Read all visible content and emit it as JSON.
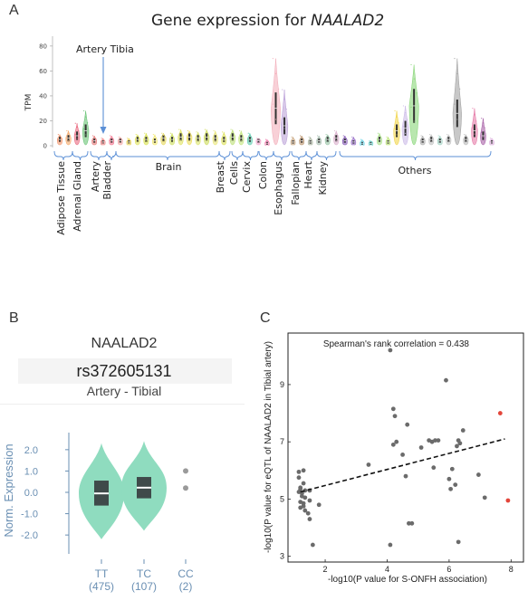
{
  "panels": {
    "a_letter": "A",
    "b_letter": "B",
    "c_letter": "C"
  },
  "panel_a": {
    "title_prefix": "Gene expression for ",
    "title_gene": "NAALAD2",
    "annotation": "Artery Tibia",
    "colors": {
      "arrow": "#5b8fd6",
      "bracket": "#5b8fd6"
    },
    "groups": [
      "Adipose Tissue",
      "Adrenal Gland",
      "Artery",
      "Bladder",
      "Brain",
      "Breast",
      "Cells",
      "Cervix",
      "Colon",
      "Esophagus",
      "Fallopian",
      "Heart",
      "Kidney",
      "Others"
    ]
  },
  "panel_b": {
    "gene": "NAALAD2",
    "snp": "rs372605131",
    "tissue": "Artery - Tibial",
    "colors": {
      "violin": "#8fdcbf",
      "box": "#3f4a4a",
      "median": "#ffffff",
      "axis": "#6a8fb3",
      "dot": "#9a9a9a"
    }
  },
  "panel_c": {
    "corr_label": "Spearman's rank correlation = 0.438",
    "colors": {
      "point": "#6b6b6b",
      "highlight": "#e3453a",
      "trend": "#111111"
    }
  },
  "chart_data": [
    {
      "type": "violin",
      "title": "Gene expression for NAALAD2",
      "ylabel": "TPM",
      "ylim": [
        0,
        85
      ],
      "yticks": [
        0,
        20,
        40,
        60,
        80
      ],
      "grid": false,
      "series": [
        {
          "median": 5,
          "spread": 9,
          "color": "#f08a5d"
        },
        {
          "median": 6,
          "spread": 12,
          "color": "#f5a05a"
        },
        {
          "median": 8,
          "spread": 18,
          "color": "#e85d75"
        },
        {
          "median": 12,
          "spread": 28,
          "color": "#5cbf6a"
        },
        {
          "median": 4,
          "spread": 8,
          "color": "#e46b6b"
        },
        {
          "median": 3,
          "spread": 6,
          "color": "#ee8080"
        },
        {
          "median": 4,
          "spread": 8,
          "color": "#f26a86"
        },
        {
          "median": 4,
          "spread": 7,
          "color": "#f2a0a0"
        },
        {
          "median": 3,
          "spread": 6,
          "color": "#e8d14a"
        },
        {
          "median": 5,
          "spread": 9,
          "color": "#dfe24f"
        },
        {
          "median": 5,
          "spread": 10,
          "color": "#d7e23e"
        },
        {
          "median": 4,
          "spread": 9,
          "color": "#f0e660"
        },
        {
          "median": 6,
          "spread": 10,
          "color": "#e3d64c"
        },
        {
          "median": 5,
          "spread": 10,
          "color": "#c8dc4f"
        },
        {
          "median": 7,
          "spread": 13,
          "color": "#dde051"
        },
        {
          "median": 7,
          "spread": 12,
          "color": "#e9d848"
        },
        {
          "median": 6,
          "spread": 11,
          "color": "#d8e25d"
        },
        {
          "median": 7,
          "spread": 13,
          "color": "#c9d94a"
        },
        {
          "median": 6,
          "spread": 12,
          "color": "#e7e46a"
        },
        {
          "median": 5,
          "spread": 11,
          "color": "#dbe04a"
        },
        {
          "median": 7,
          "spread": 13,
          "color": "#b6dd6a"
        },
        {
          "median": 6,
          "spread": 12,
          "color": "#bfe36f"
        },
        {
          "median": 5,
          "spread": 10,
          "color": "#4fc7a8"
        },
        {
          "median": 4,
          "spread": 6,
          "color": "#f0a0c8"
        },
        {
          "median": 2,
          "spread": 5,
          "color": "#f06fa6"
        },
        {
          "median": 30,
          "spread": 70,
          "color": "#f2a9b7"
        },
        {
          "median": 16,
          "spread": 45,
          "color": "#b79ad6"
        },
        {
          "median": 3,
          "spread": 7,
          "color": "#c6a27a"
        },
        {
          "median": 4,
          "spread": 8,
          "color": "#b48a60"
        },
        {
          "median": 3,
          "spread": 7,
          "color": "#a6b19a"
        },
        {
          "median": 4,
          "spread": 8,
          "color": "#9fb8a8"
        },
        {
          "median": 5,
          "spread": 9,
          "color": "#8fbf9f"
        },
        {
          "median": 6,
          "spread": 12,
          "color": "#d8a8c8"
        },
        {
          "median": 4,
          "spread": 8,
          "color": "#7a4bb0"
        },
        {
          "median": 3,
          "spread": 7,
          "color": "#8f63c2"
        },
        {
          "median": 2,
          "spread": 5,
          "color": "#5fd3e6"
        },
        {
          "median": 2,
          "spread": 4,
          "color": "#69d7d2"
        },
        {
          "median": 5,
          "spread": 10,
          "color": "#9fdc7a"
        },
        {
          "median": 3,
          "spread": 7,
          "color": "#b7e26a"
        },
        {
          "median": 12,
          "spread": 28,
          "color": "#f0d23a"
        },
        {
          "median": 14,
          "spread": 32,
          "color": "#c7b4e6"
        },
        {
          "median": 32,
          "spread": 65,
          "color": "#7fd36e"
        },
        {
          "median": 4,
          "spread": 8,
          "color": "#a6a6a6"
        },
        {
          "median": 5,
          "spread": 9,
          "color": "#bcbcbc"
        },
        {
          "median": 4,
          "spread": 8,
          "color": "#9ad0c0"
        },
        {
          "median": 5,
          "spread": 9,
          "color": "#c0c0c0"
        },
        {
          "median": 26,
          "spread": 70,
          "color": "#9a9a9a"
        },
        {
          "median": 5,
          "spread": 9,
          "color": "#b5b5b5"
        },
        {
          "median": 12,
          "spread": 30,
          "color": "#e36fa0"
        },
        {
          "median": 8,
          "spread": 22,
          "color": "#a0529f"
        },
        {
          "median": 3,
          "spread": 6,
          "color": "#d8a8d8"
        }
      ]
    },
    {
      "type": "violin",
      "title": "NAALAD2",
      "subtitle": "rs372605131",
      "ylabel": "Norm. Expression",
      "ylim": [
        -2.8,
        2.8
      ],
      "yticks": [
        -2.0,
        -1.0,
        0.0,
        1.0,
        2.0
      ],
      "yticklabels": [
        "-2.0",
        "-1.0",
        "0.0",
        "1.0",
        "2.0"
      ],
      "categories": [
        "TT",
        "TC",
        "CC"
      ],
      "counts": [
        "(475)",
        "(107)",
        "(2)"
      ],
      "series": [
        {
          "name": "TT",
          "median": -0.05,
          "q1": -0.62,
          "q3": 0.55,
          "min": -2.2,
          "max": 2.3
        },
        {
          "name": "TC",
          "median": 0.22,
          "q1": -0.28,
          "q3": 0.72,
          "min": -1.8,
          "max": 2.4
        }
      ],
      "cc_points": [
        1.0,
        0.2
      ]
    },
    {
      "type": "scatter",
      "xlabel": "-log10(P value for S-ONFH association)",
      "ylabel": "-log10(P value for eQTL of NAALAD2 in Tibial artery)",
      "xlim": [
        0.8,
        8.4
      ],
      "ylim": [
        2.8,
        10.8
      ],
      "xticks": [
        2,
        4,
        6,
        8
      ],
      "yticks": [
        3,
        5,
        7,
        9
      ],
      "points": [
        [
          1.15,
          5.95
        ],
        [
          1.3,
          6.0
        ],
        [
          1.15,
          5.75
        ],
        [
          1.3,
          5.55
        ],
        [
          1.2,
          5.4
        ],
        [
          1.2,
          5.35
        ],
        [
          1.25,
          5.2
        ],
        [
          1.25,
          5.1
        ],
        [
          1.2,
          4.9
        ],
        [
          1.2,
          4.7
        ],
        [
          1.3,
          4.85
        ],
        [
          1.35,
          4.6
        ],
        [
          1.3,
          4.75
        ],
        [
          1.15,
          5.25
        ],
        [
          1.35,
          5.3
        ],
        [
          1.35,
          5.05
        ],
        [
          1.5,
          5.3
        ],
        [
          1.5,
          4.95
        ],
        [
          1.45,
          4.5
        ],
        [
          1.5,
          4.3
        ],
        [
          1.6,
          3.4
        ],
        [
          1.8,
          4.8
        ],
        [
          3.4,
          6.2
        ],
        [
          4.1,
          10.2
        ],
        [
          4.2,
          8.15
        ],
        [
          4.25,
          7.9
        ],
        [
          4.3,
          7.0
        ],
        [
          4.2,
          6.9
        ],
        [
          4.1,
          3.4
        ],
        [
          4.5,
          6.55
        ],
        [
          4.65,
          7.6
        ],
        [
          4.6,
          5.8
        ],
        [
          4.7,
          4.15
        ],
        [
          4.8,
          4.15
        ],
        [
          5.1,
          6.8
        ],
        [
          5.35,
          7.05
        ],
        [
          5.45,
          7.0
        ],
        [
          5.55,
          7.05
        ],
        [
          5.65,
          7.05
        ],
        [
          5.5,
          6.1
        ],
        [
          5.9,
          9.15
        ],
        [
          6.0,
          5.7
        ],
        [
          6.05,
          5.35
        ],
        [
          6.1,
          6.05
        ],
        [
          6.25,
          6.85
        ],
        [
          6.3,
          7.05
        ],
        [
          6.45,
          7.4
        ],
        [
          6.35,
          6.95
        ],
        [
          6.2,
          5.5
        ],
        [
          6.3,
          3.5
        ],
        [
          6.95,
          5.85
        ],
        [
          7.15,
          5.05
        ]
      ],
      "highlight_points": [
        [
          7.65,
          8.0
        ],
        [
          7.9,
          4.95
        ]
      ],
      "trendline": {
        "x": [
          1.2,
          7.8
        ],
        "y": [
          5.25,
          7.1
        ]
      },
      "annotation": "Spearman's rank correlation = 0.438"
    }
  ]
}
